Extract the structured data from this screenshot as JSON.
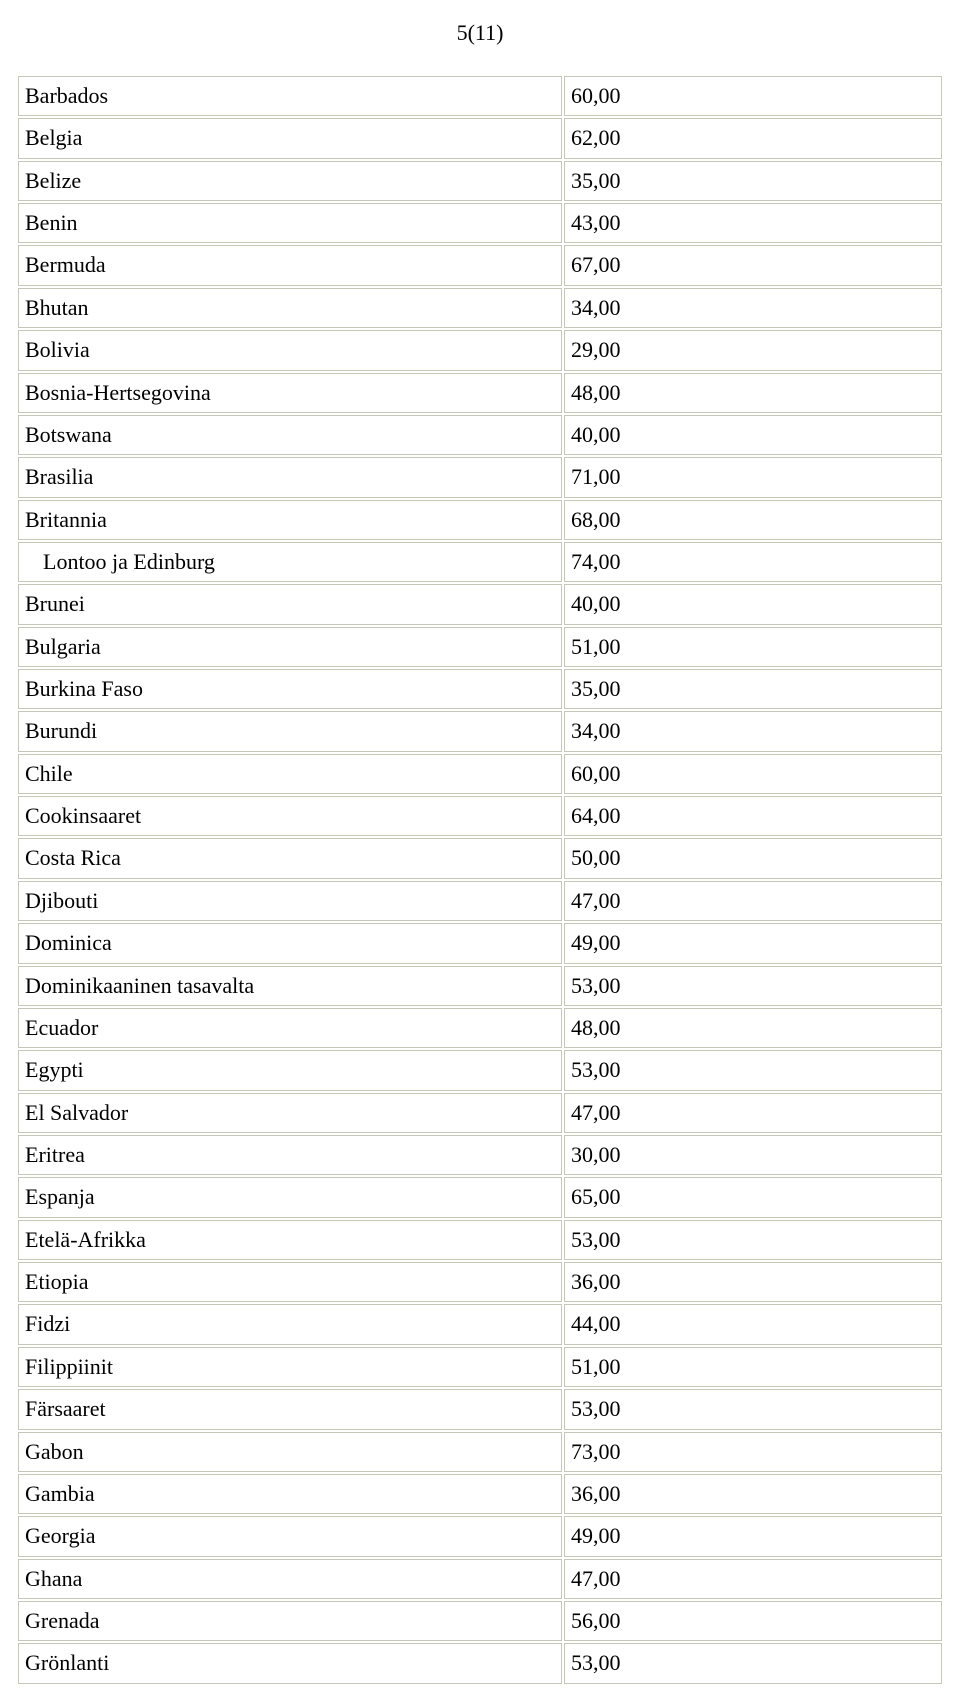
{
  "page_label": "5(11)",
  "table": {
    "columns": [
      "country",
      "value"
    ],
    "col_widths_pct": [
      59,
      41
    ],
    "rows": [
      {
        "country": "Barbados",
        "value": "60,00",
        "indent": false
      },
      {
        "country": "Belgia",
        "value": "62,00",
        "indent": false
      },
      {
        "country": "Belize",
        "value": "35,00",
        "indent": false
      },
      {
        "country": "Benin",
        "value": "43,00",
        "indent": false
      },
      {
        "country": "Bermuda",
        "value": "67,00",
        "indent": false
      },
      {
        "country": "Bhutan",
        "value": "34,00",
        "indent": false
      },
      {
        "country": "Bolivia",
        "value": "29,00",
        "indent": false
      },
      {
        "country": "Bosnia-Hertsegovina",
        "value": "48,00",
        "indent": false
      },
      {
        "country": "Botswana",
        "value": "40,00",
        "indent": false
      },
      {
        "country": "Brasilia",
        "value": "71,00",
        "indent": false
      },
      {
        "country": "Britannia",
        "value": "68,00",
        "indent": false
      },
      {
        "country": "Lontoo ja Edinburg",
        "value": "74,00",
        "indent": true
      },
      {
        "country": "Brunei",
        "value": "40,00",
        "indent": false
      },
      {
        "country": "Bulgaria",
        "value": "51,00",
        "indent": false
      },
      {
        "country": "Burkina Faso",
        "value": "35,00",
        "indent": false
      },
      {
        "country": "Burundi",
        "value": "34,00",
        "indent": false
      },
      {
        "country": "Chile",
        "value": "60,00",
        "indent": false
      },
      {
        "country": "Cookinsaaret",
        "value": "64,00",
        "indent": false
      },
      {
        "country": "Costa Rica",
        "value": "50,00",
        "indent": false
      },
      {
        "country": "Djibouti",
        "value": "47,00",
        "indent": false
      },
      {
        "country": "Dominica",
        "value": "49,00",
        "indent": false
      },
      {
        "country": "Dominikaaninen tasavalta",
        "value": "53,00",
        "indent": false
      },
      {
        "country": "Ecuador",
        "value": "48,00",
        "indent": false
      },
      {
        "country": "Egypti",
        "value": "53,00",
        "indent": false
      },
      {
        "country": "El Salvador",
        "value": "47,00",
        "indent": false
      },
      {
        "country": "Eritrea",
        "value": "30,00",
        "indent": false
      },
      {
        "country": "Espanja",
        "value": "65,00",
        "indent": false
      },
      {
        "country": "Etelä-Afrikka",
        "value": "53,00",
        "indent": false
      },
      {
        "country": "Etiopia",
        "value": "36,00",
        "indent": false
      },
      {
        "country": "Fidzi",
        "value": "44,00",
        "indent": false
      },
      {
        "country": "Filippiinit",
        "value": "51,00",
        "indent": false
      },
      {
        "country": "Färsaaret",
        "value": "53,00",
        "indent": false
      },
      {
        "country": "Gabon",
        "value": "73,00",
        "indent": false
      },
      {
        "country": "Gambia",
        "value": "36,00",
        "indent": false
      },
      {
        "country": "Georgia",
        "value": "49,00",
        "indent": false
      },
      {
        "country": "Ghana",
        "value": "47,00",
        "indent": false
      },
      {
        "country": "Grenada",
        "value": "56,00",
        "indent": false
      },
      {
        "country": "Grönlanti",
        "value": "53,00",
        "indent": false
      }
    ],
    "border_color": "#c7c7b8",
    "cell_background": "#ffffff",
    "font_family": "Times New Roman",
    "font_size_pt": 16
  }
}
